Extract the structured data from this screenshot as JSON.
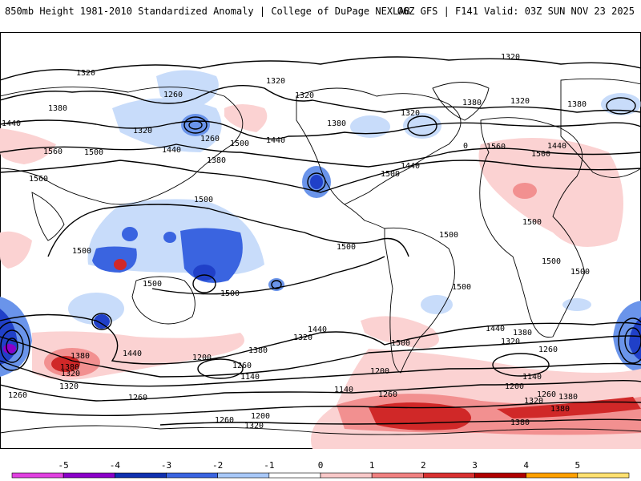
{
  "header": {
    "left": "850mb Height 1981-2010 Standardized Anomaly | College of DuPage NEXLAB",
    "right": "06Z GFS | F141 Valid: 03Z SUN NOV 23 2025"
  },
  "map": {
    "contour_labels": [
      "1320",
      "1380",
      "1260",
      "1440",
      "1500",
      "1560",
      "1200",
      "1140",
      "0"
    ]
  },
  "colorbar": {
    "ticks": [
      "-5",
      "-4",
      "-3",
      "-2",
      "-1",
      "0",
      "1",
      "2",
      "3",
      "4",
      "5"
    ],
    "colors": [
      "#e040e0",
      "#8a00c8",
      "#1030b0",
      "#3a64e0",
      "#a8c8f8",
      "#ffffff",
      "#f8c8c8",
      "#f08080",
      "#d83030",
      "#b00000",
      "#ffa000",
      "#ffe070"
    ]
  },
  "colors": {
    "neg_weak": "#c8dcfa",
    "neg_mid": "#6a94ea",
    "neg_strong": "#2040c8",
    "pos_weak": "#fbd2d2",
    "pos_mid": "#f29090",
    "pos_strong": "#d02828"
  }
}
